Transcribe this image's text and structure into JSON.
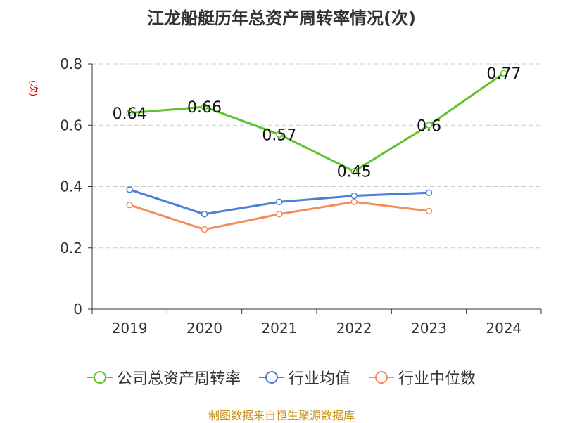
{
  "title": "江龙船艇历年总资产周转率情况(次)",
  "source": "制图数据来自恒生聚源数据库",
  "colors": {
    "company": "#5cc429",
    "industry_avg": "#4a7fd8",
    "industry_median": "#f58c5c",
    "grid": "#cccccc",
    "axis": "#333333",
    "unit": "#e00000"
  },
  "chart_data": {
    "type": "line",
    "title": "江龙船艇历年总资产周转率情况(次)",
    "ylabel": "(次)",
    "xlabel": "",
    "categories": [
      "2019",
      "2020",
      "2021",
      "2022",
      "2023",
      "2024"
    ],
    "ylim": [
      0,
      0.8
    ],
    "yticks": [
      "0",
      "0.2",
      "0.4",
      "0.6",
      "0.8"
    ],
    "grid": true,
    "legend_position": "bottom",
    "series": [
      {
        "name": "公司总资产周转率",
        "values": [
          0.64,
          0.66,
          0.57,
          0.45,
          0.6,
          0.77
        ],
        "labels": [
          "0.64",
          "0.66",
          "0.57",
          "0.45",
          "0.6",
          "0.77"
        ],
        "color": "#5cc429"
      },
      {
        "name": "行业均值",
        "values": [
          0.39,
          0.31,
          0.35,
          0.37,
          0.38,
          null
        ],
        "color": "#4a7fd8"
      },
      {
        "name": "行业中位数",
        "values": [
          0.34,
          0.26,
          0.31,
          0.35,
          0.32,
          null
        ],
        "color": "#f58c5c"
      }
    ]
  }
}
